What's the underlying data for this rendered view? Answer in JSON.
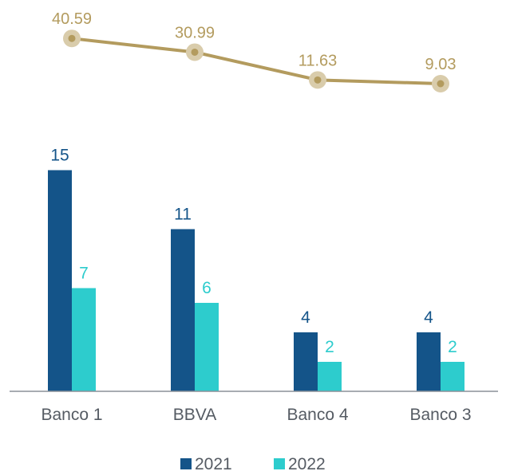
{
  "chart_data": {
    "type": "bar",
    "categories": [
      "Banco 1",
      "BBVA",
      "Banco 4",
      "Banco 3"
    ],
    "series": [
      {
        "name": "2021",
        "values": [
          15,
          11,
          4,
          4
        ],
        "color": "#145489"
      },
      {
        "name": "2022",
        "values": [
          7,
          6,
          2,
          2
        ],
        "color": "#2dcccd"
      }
    ],
    "line_series": {
      "values": [
        40.59,
        30.99,
        11.63,
        9.03
      ],
      "labels": [
        "40.59",
        "30.99",
        "11.63",
        "9.03"
      ],
      "color": "#b39b5e",
      "marker_color": "#d9ccab"
    },
    "title": "",
    "xlabel": "",
    "ylabel": "",
    "legend_position": "bottom-center",
    "grid": false,
    "axis_color": "#8c9199"
  }
}
